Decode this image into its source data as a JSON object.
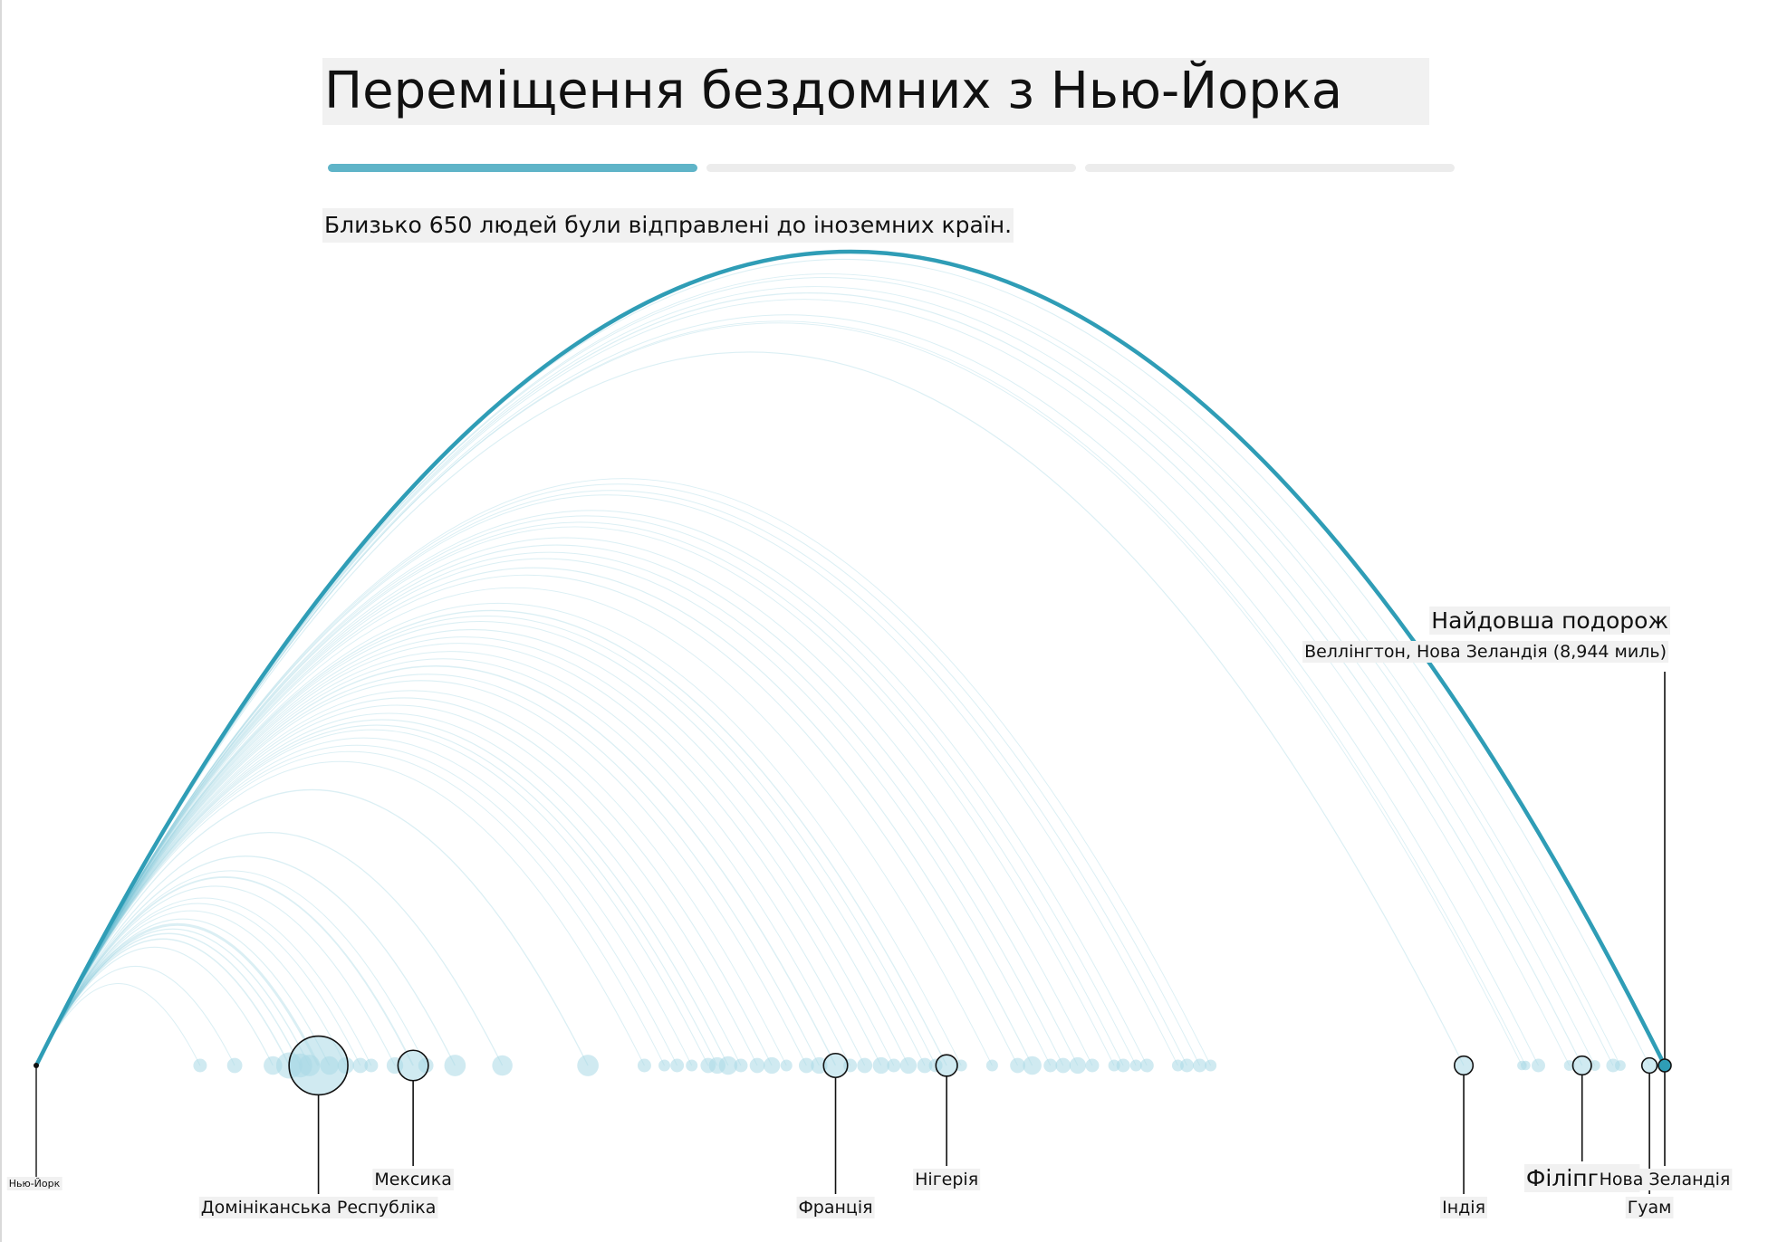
{
  "header": {
    "title": "Переміщення бездомних з Нью-Йорка",
    "subtitle": "Близько 650 людей були відправлені до іноземних країн."
  },
  "progress": {
    "steps": 3,
    "active": 1
  },
  "colors": {
    "accent": "#2f9db6",
    "arc": "#5ab6cf",
    "bubble": "#a9d9e6",
    "progress_active": "#5fb4c8",
    "label_bg": "#f1f1f1"
  },
  "chart_data": {
    "type": "arc",
    "x_unit": "miles from New York",
    "x_max": 8944,
    "origin": {
      "label": "Нью-Йорк",
      "distance": 0
    },
    "callout": {
      "heading": "Найдовша подорож",
      "detail": "Веллінгтон, Нова Зеландія (8,944 миль)"
    },
    "destinations": [
      {
        "label": "Домініканська Республіка",
        "distance": 1550,
        "people": 150
      },
      {
        "label": "Мексика",
        "distance": 2070,
        "people": 40
      },
      {
        "label": "Франція",
        "distance": 4390,
        "people": 25
      },
      {
        "label": "Нігерія",
        "distance": 5000,
        "people": 20
      },
      {
        "label": "Індія",
        "distance": 7840,
        "people": 15
      },
      {
        "label": "Філіппіни",
        "distance": 8490,
        "people": 15
      },
      {
        "label": "Гуам",
        "distance": 8860,
        "people": 10
      },
      {
        "label": "Нова Зеландія",
        "distance": 8944,
        "people": 3
      }
    ],
    "other_destinations": [
      {
        "distance": 900,
        "people": 8
      },
      {
        "distance": 1090,
        "people": 10
      },
      {
        "distance": 1300,
        "people": 15
      },
      {
        "distance": 1390,
        "people": 30
      },
      {
        "distance": 1450,
        "people": 25
      },
      {
        "distance": 1500,
        "people": 20
      },
      {
        "distance": 1610,
        "people": 15
      },
      {
        "distance": 1700,
        "people": 12
      },
      {
        "distance": 1780,
        "people": 10
      },
      {
        "distance": 1840,
        "people": 8
      },
      {
        "distance": 1970,
        "people": 12
      },
      {
        "distance": 2140,
        "people": 10
      },
      {
        "distance": 2300,
        "people": 20
      },
      {
        "distance": 2560,
        "people": 18
      },
      {
        "distance": 3030,
        "people": 20
      },
      {
        "distance": 3340,
        "people": 8
      },
      {
        "distance": 3450,
        "people": 6
      },
      {
        "distance": 3520,
        "people": 8
      },
      {
        "distance": 3600,
        "people": 6
      },
      {
        "distance": 3690,
        "people": 10
      },
      {
        "distance": 3740,
        "people": 12
      },
      {
        "distance": 3800,
        "people": 15
      },
      {
        "distance": 3870,
        "people": 8
      },
      {
        "distance": 3960,
        "people": 10
      },
      {
        "distance": 4040,
        "people": 12
      },
      {
        "distance": 4120,
        "people": 6
      },
      {
        "distance": 4230,
        "people": 10
      },
      {
        "distance": 4300,
        "people": 12
      },
      {
        "distance": 4470,
        "people": 8
      },
      {
        "distance": 4550,
        "people": 10
      },
      {
        "distance": 4640,
        "people": 12
      },
      {
        "distance": 4710,
        "people": 8
      },
      {
        "distance": 4790,
        "people": 12
      },
      {
        "distance": 4880,
        "people": 10
      },
      {
        "distance": 4940,
        "people": 8
      },
      {
        "distance": 5080,
        "people": 6
      },
      {
        "distance": 5250,
        "people": 6
      },
      {
        "distance": 5390,
        "people": 10
      },
      {
        "distance": 5470,
        "people": 15
      },
      {
        "distance": 5570,
        "people": 8
      },
      {
        "distance": 5640,
        "people": 10
      },
      {
        "distance": 5720,
        "people": 12
      },
      {
        "distance": 5800,
        "people": 8
      },
      {
        "distance": 5920,
        "people": 6
      },
      {
        "distance": 5970,
        "people": 8
      },
      {
        "distance": 6040,
        "people": 6
      },
      {
        "distance": 6100,
        "people": 8
      },
      {
        "distance": 6270,
        "people": 6
      },
      {
        "distance": 6320,
        "people": 8
      },
      {
        "distance": 6390,
        "people": 8
      },
      {
        "distance": 6450,
        "people": 6
      },
      {
        "distance": 8160,
        "people": 4
      },
      {
        "distance": 8180,
        "people": 4
      },
      {
        "distance": 8250,
        "people": 8
      },
      {
        "distance": 8420,
        "people": 5
      },
      {
        "distance": 8560,
        "people": 5
      },
      {
        "distance": 8660,
        "people": 8
      },
      {
        "distance": 8700,
        "people": 5
      }
    ]
  }
}
